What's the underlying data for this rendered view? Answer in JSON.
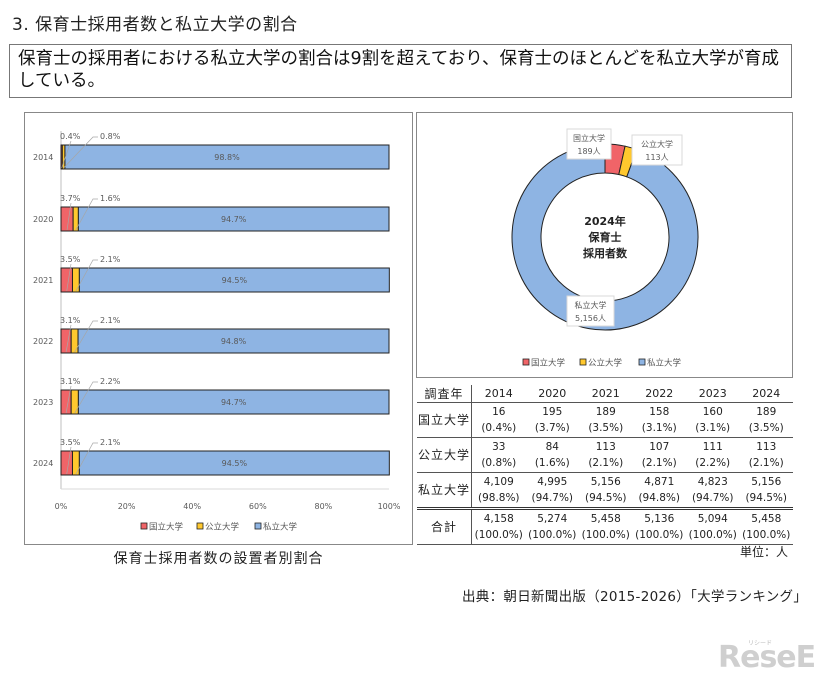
{
  "heading": "3. 保育士採用者数と私立大学の割合",
  "summary": "保育士の採用者における私立大学の割合は9割を超えており、保育士のほとんどを私立大学が育成している。",
  "colors": {
    "national": "#F06468",
    "public": "#FFC82E",
    "private": "#8EB4E3",
    "border": "#222222"
  },
  "bar_chart": {
    "caption": "保育士採用者数の設置者別割合",
    "legend": [
      "国立大学",
      "公立大学",
      "私立大学"
    ],
    "x_ticks": [
      "0%",
      "20%",
      "40%",
      "60%",
      "80%",
      "100%"
    ],
    "rows": [
      {
        "year": "2014",
        "national_label": "0.4%",
        "public_label": "0.8%",
        "private_label": "98.8%"
      },
      {
        "year": "2020",
        "national_label": "3.7%",
        "public_label": "1.6%",
        "private_label": "94.7%"
      },
      {
        "year": "2021",
        "national_label": "3.5%",
        "public_label": "2.1%",
        "private_label": "94.5%"
      },
      {
        "year": "2022",
        "national_label": "3.1%",
        "public_label": "2.1%",
        "private_label": "94.8%"
      },
      {
        "year": "2023",
        "national_label": "3.1%",
        "public_label": "2.2%",
        "private_label": "94.7%"
      },
      {
        "year": "2024",
        "national_label": "3.5%",
        "public_label": "2.1%",
        "private_label": "94.5%"
      }
    ]
  },
  "donut_chart": {
    "center_line1": "2024年",
    "center_line2": "保育士",
    "center_line3": "採用者数",
    "legend": [
      "国立大学",
      "公立大学",
      "私立大学"
    ],
    "labels": [
      {
        "name": "国立大学",
        "value": "189人"
      },
      {
        "name": "公立大学",
        "value": "113人"
      },
      {
        "name": "私立大学",
        "value": "5,156人"
      }
    ]
  },
  "table": {
    "header": "調査年",
    "years": [
      "2014",
      "2020",
      "2021",
      "2022",
      "2023",
      "2024"
    ],
    "rows": [
      {
        "label": "国立大学",
        "counts": [
          "16",
          "195",
          "189",
          "158",
          "160",
          "189"
        ],
        "pcts": [
          "(0.4%)",
          "(3.7%)",
          "(3.5%)",
          "(3.1%)",
          "(3.1%)",
          "(3.5%)"
        ]
      },
      {
        "label": "公立大学",
        "counts": [
          "33",
          "84",
          "113",
          "107",
          "111",
          "113"
        ],
        "pcts": [
          "(0.8%)",
          "(1.6%)",
          "(2.1%)",
          "(2.1%)",
          "(2.2%)",
          "(2.1%)"
        ]
      },
      {
        "label": "私立大学",
        "counts": [
          "4,109",
          "4,995",
          "5,156",
          "4,871",
          "4,823",
          "5,156"
        ],
        "pcts": [
          "(98.8%)",
          "(94.7%)",
          "(94.5%)",
          "(94.8%)",
          "(94.7%)",
          "(94.5%)"
        ]
      },
      {
        "label": "合計",
        "counts": [
          "4,158",
          "5,274",
          "5,458",
          "5,136",
          "5,094",
          "5,458"
        ],
        "pcts": [
          "(100.0%)",
          "(100.0%)",
          "(100.0%)",
          "(100.0%)",
          "(100.0%)",
          "(100.0%)"
        ]
      }
    ],
    "unit": "単位：人"
  },
  "source": "出典：朝日新聞出版（2015-2026）「大学ランキング」",
  "logo": {
    "text": "ReseEd",
    "sub": "リシード"
  },
  "chart_data": [
    {
      "type": "bar",
      "orientation": "horizontal",
      "stacked": true,
      "title": "保育士採用者数の設置者別割合",
      "categories": [
        "2014",
        "2020",
        "2021",
        "2022",
        "2023",
        "2024"
      ],
      "series": [
        {
          "name": "国立大学",
          "values": [
            0.4,
            3.7,
            3.5,
            3.1,
            3.1,
            3.5
          ]
        },
        {
          "name": "公立大学",
          "values": [
            0.8,
            1.6,
            2.1,
            2.1,
            2.2,
            2.1
          ]
        },
        {
          "name": "私立大学",
          "values": [
            98.8,
            94.7,
            94.5,
            94.8,
            94.7,
            94.5
          ]
        }
      ],
      "xlabel": "",
      "ylabel": "",
      "xlim": [
        0,
        100
      ],
      "x_ticks": [
        "0%",
        "20%",
        "40%",
        "60%",
        "80%",
        "100%"
      ],
      "legend_position": "bottom",
      "grid": false
    },
    {
      "type": "pie",
      "donut": true,
      "title": "2024年 保育士採用者数",
      "categories": [
        "国立大学",
        "公立大学",
        "私立大学"
      ],
      "values": [
        189,
        113,
        5156
      ],
      "unit": "人",
      "legend_position": "bottom"
    },
    {
      "type": "table",
      "columns": [
        "調査年",
        "2014",
        "2020",
        "2021",
        "2022",
        "2023",
        "2024"
      ],
      "rows": [
        [
          "国立大学",
          16,
          195,
          189,
          158,
          160,
          189
        ],
        [
          "公立大学",
          33,
          84,
          113,
          107,
          111,
          113
        ],
        [
          "私立大学",
          4109,
          4995,
          5156,
          4871,
          4823,
          5156
        ],
        [
          "合計",
          4158,
          5274,
          5458,
          5136,
          5094,
          5458
        ]
      ],
      "unit": "人"
    }
  ]
}
